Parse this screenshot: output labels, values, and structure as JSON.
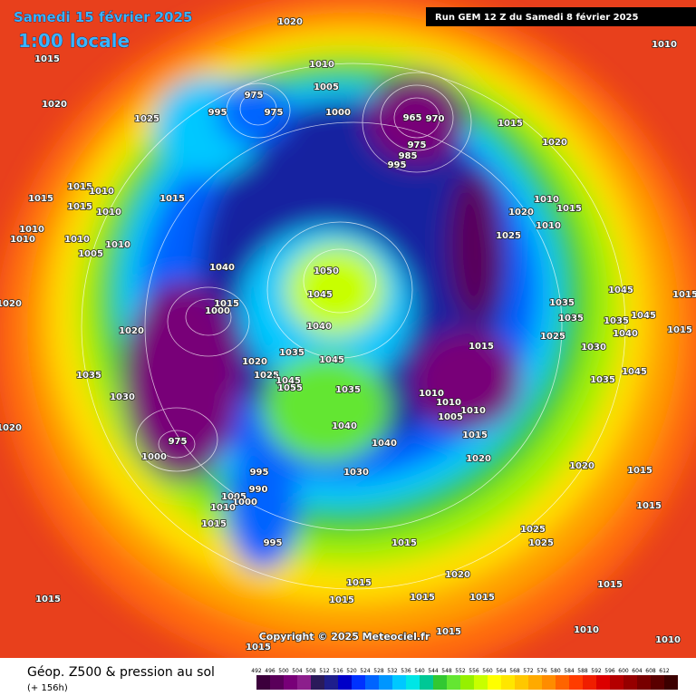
{
  "header": {
    "date": "Samedi 15 février 2025",
    "time": "1:00 locale",
    "run": "Run GEM 12 Z du Samedi 8 février 2025"
  },
  "footer": {
    "title": "Géop. Z500 & pression au sol",
    "lead": "(+ 156h)",
    "copyright": "Copyright © 2025 Meteociel.fr"
  },
  "colorbar": {
    "values": [
      492,
      496,
      500,
      504,
      508,
      512,
      516,
      520,
      524,
      528,
      532,
      536,
      540,
      544,
      548,
      552,
      556,
      560,
      564,
      568,
      572,
      576,
      580,
      584,
      588,
      592,
      596,
      600,
      604,
      608,
      612
    ],
    "colors": [
      "#3c003c",
      "#5a005a",
      "#780078",
      "#8c1e8c",
      "#2a1a5a",
      "#1e1e8c",
      "#0000c8",
      "#0032ff",
      "#0064ff",
      "#0096ff",
      "#00c8ff",
      "#00e6e6",
      "#00c896",
      "#32c832",
      "#64e632",
      "#96f000",
      "#c8ff00",
      "#ffff00",
      "#ffe600",
      "#ffc800",
      "#ffaa00",
      "#ff8c00",
      "#ff6400",
      "#ff3c00",
      "#f01e00",
      "#dc0000",
      "#b40000",
      "#960000",
      "#780000",
      "#5a0000",
      "#3c0000"
    ]
  },
  "pressure_labels": [
    "1020",
    "1015",
    "1020",
    "1025",
    "1010",
    "1005",
    "1000",
    "975",
    "995",
    "975",
    "965",
    "970",
    "975",
    "985",
    "995",
    "1015",
    "1020",
    "1010",
    "1015",
    "1015",
    "1010",
    "1015",
    "1015",
    "1010",
    "1010",
    "1010",
    "1010",
    "1010",
    "1005",
    "1040",
    "1050",
    "1045",
    "1010",
    "1020",
    "1010",
    "1015",
    "1025",
    "1020",
    "1015",
    "1000",
    "1020",
    "1040",
    "1035",
    "1035",
    "1045",
    "1045",
    "1035",
    "1040",
    "1015",
    "1015",
    "1025",
    "1030",
    "1015",
    "1035",
    "1045",
    "1020",
    "1025",
    "1045",
    "1055",
    "1035",
    "1035",
    "1030",
    "1045",
    "1035",
    "1010",
    "1010",
    "1010",
    "1005",
    "1040",
    "1020",
    "1040",
    "1015",
    "1020",
    "1030",
    "995",
    "975",
    "1000",
    "990",
    "1005",
    "1000",
    "1010",
    "1020",
    "1015",
    "1015",
    "1015",
    "1025",
    "1025",
    "1015",
    "995",
    "1020",
    "1015",
    "1015",
    "1015",
    "1015",
    "1015",
    "1015",
    "1015",
    "1010",
    "1010",
    "1015"
  ]
}
